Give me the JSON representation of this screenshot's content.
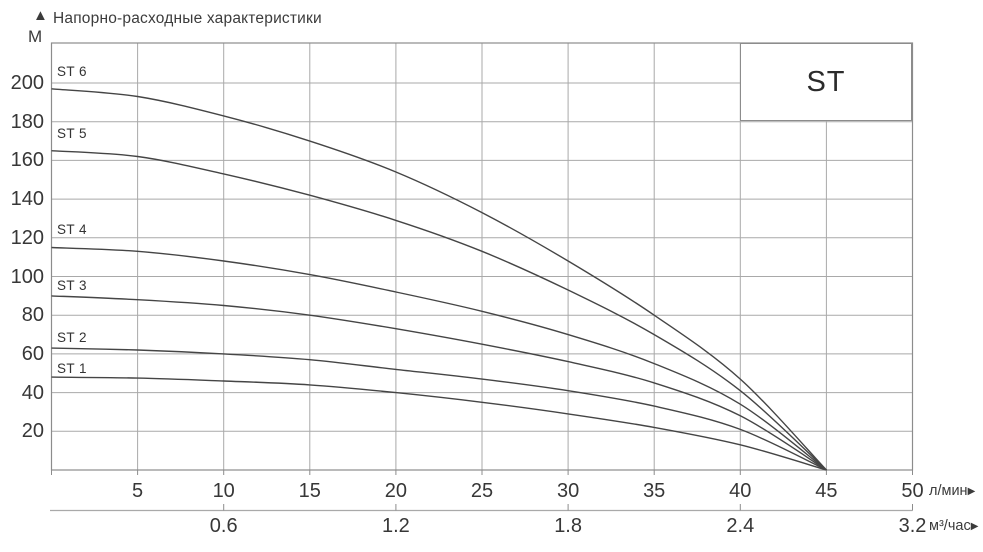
{
  "header": {
    "up_arrow_icon": "▲",
    "y_unit": "М",
    "title": "Напорно-расходные характеристики"
  },
  "legend": {
    "label": "ST"
  },
  "axes": {
    "y": {
      "unit": "М",
      "ticks": [
        20,
        40,
        60,
        80,
        100,
        120,
        140,
        160,
        180,
        200
      ]
    },
    "x_primary": {
      "ticks": [
        5,
        10,
        15,
        20,
        25,
        30,
        35,
        40,
        45,
        50
      ],
      "unit": "л/мин",
      "arrow_icon": "▶"
    },
    "x_secondary": {
      "tick_labels": [
        "0.6",
        "1.2",
        "1.8",
        "2.4",
        "3.2"
      ],
      "tick_positions_lmin": [
        10,
        20,
        30,
        40,
        50
      ],
      "unit": "м³/час",
      "arrow_icon": "▶"
    }
  },
  "chart_data": {
    "type": "line",
    "title": "Напорно-расходные характеристики",
    "ylabel": "М",
    "xlabel": "л/мин",
    "xlabel_secondary": "м³/час",
    "x": [
      0,
      5,
      10,
      15,
      20,
      25,
      30,
      35,
      40,
      45
    ],
    "series": [
      {
        "name": "ST 1",
        "values": [
          48,
          47.5,
          46,
          44,
          40,
          35,
          29,
          22,
          13,
          0
        ]
      },
      {
        "name": "ST 2",
        "values": [
          63,
          62,
          60,
          57,
          52,
          47,
          41,
          33,
          21,
          0
        ]
      },
      {
        "name": "ST 3",
        "values": [
          90,
          88,
          85,
          80,
          73,
          65,
          56,
          45,
          28,
          0
        ]
      },
      {
        "name": "ST 4",
        "values": [
          115,
          113,
          108,
          101,
          92,
          82,
          70,
          55,
          34,
          0
        ]
      },
      {
        "name": "ST 5",
        "values": [
          165,
          162,
          153,
          142,
          129,
          113,
          93,
          70,
          41,
          0
        ]
      },
      {
        "name": "ST 6",
        "values": [
          197,
          193,
          183,
          170,
          154,
          133,
          108,
          80,
          47,
          0
        ]
      }
    ],
    "x_range": [
      0,
      50
    ],
    "y_range": [
      0,
      220
    ],
    "grid": true,
    "legend_position": "top-right",
    "legend_label": "ST",
    "colors": {
      "curve": "#454545",
      "grid": "#a9a9a9",
      "border": "#8c8c8c",
      "text": "#3b3b3b"
    }
  }
}
